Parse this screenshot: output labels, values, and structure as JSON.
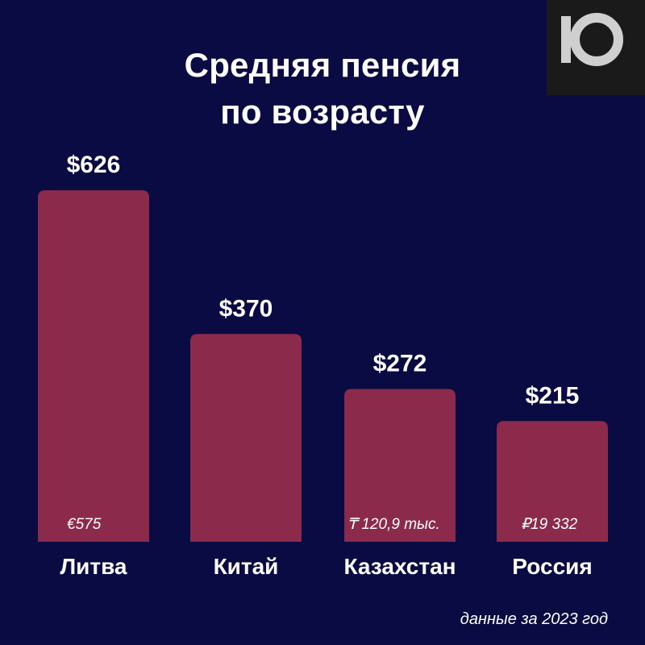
{
  "title_lines": [
    "Средняя пенсия",
    "по возрасту"
  ],
  "footnote": "данные за 2023 год",
  "logo_icon": "ten-logo-icon",
  "colors": {
    "background": "#0b0b43",
    "bar": "#8b2a4a",
    "text": "#ffffff"
  },
  "chart_data": {
    "type": "bar",
    "categories": [
      "Литва",
      "Китай",
      "Казахстан",
      "Россия"
    ],
    "values": [
      626,
      370,
      272,
      215
    ],
    "value_labels": [
      "$626",
      "$370",
      "$272",
      "$215"
    ],
    "local_currency_labels": [
      "€575",
      "",
      "₸ 120,9 тыс.",
      "₽19 332"
    ],
    "title": "Средняя пенсия по возрасту",
    "unit": "USD",
    "xlabel": "",
    "ylabel": "",
    "ylim": [
      0,
      626
    ],
    "grid": false,
    "legend": "none"
  }
}
